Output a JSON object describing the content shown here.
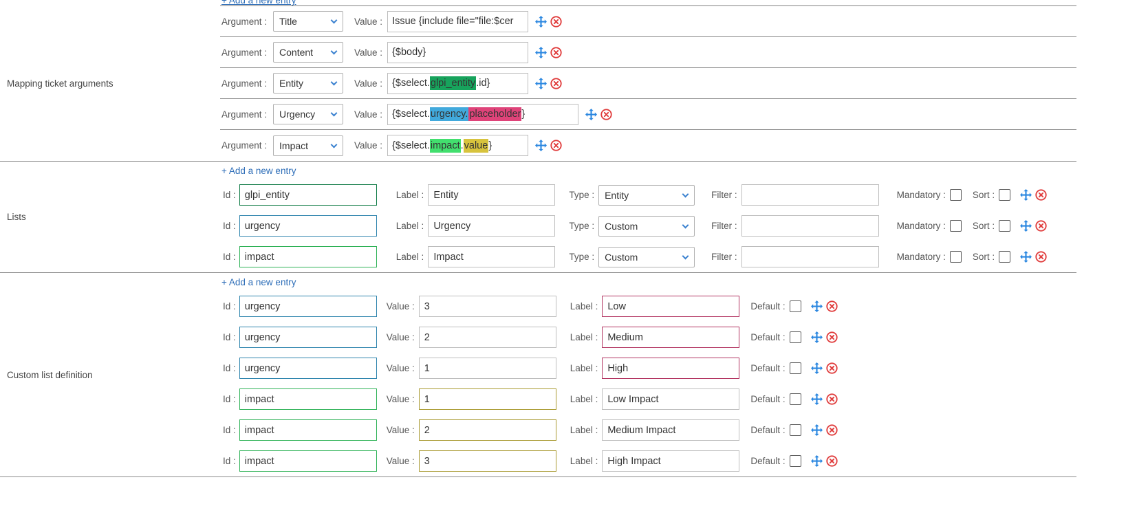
{
  "colors": {
    "green": "#17a35c",
    "blue": "#41a9dc",
    "lightgreen": "#42df6e",
    "pink": "#df4379",
    "yellow": "#d7c33d",
    "link": "#2e6eb8",
    "move_icon": "#2b87e0",
    "delete_icon": "#e03c3c",
    "select_chevron": "#3b82d0"
  },
  "top": {
    "add_entry": "+ Add a new entry"
  },
  "sections": {
    "mapping": {
      "label": "Mapping ticket arguments",
      "argument_label": "Argument :",
      "value_label": "Value :",
      "rows": [
        {
          "argument": "Title",
          "parts": [
            {
              "t": "Issue {include file=\"file:$cer"
            }
          ]
        },
        {
          "argument": "Content",
          "parts": [
            {
              "t": "{$body}"
            }
          ]
        },
        {
          "argument": "Entity",
          "parts": [
            {
              "t": "{$select."
            },
            {
              "t": "glpi_entity",
              "c": "green"
            },
            {
              "t": ".id}"
            }
          ]
        },
        {
          "argument": "Urgency",
          "wide": true,
          "parts": [
            {
              "t": "{$select."
            },
            {
              "t": "urgency.",
              "c": "blue"
            },
            {
              "t": "placeholder",
              "c": "pink"
            },
            {
              "t": "}"
            }
          ]
        },
        {
          "argument": "Impact",
          "parts": [
            {
              "t": "{$select."
            },
            {
              "t": "impact",
              "c": "lightgreen"
            },
            {
              "t": "."
            },
            {
              "t": "value",
              "c": "yellow"
            },
            {
              "t": "}"
            }
          ]
        }
      ]
    },
    "lists": {
      "label": "Lists",
      "add_entry": "+ Add a new entry",
      "labels": {
        "id": "Id :",
        "label": "Label :",
        "type": "Type :",
        "filter": "Filter :",
        "mandatory": "Mandatory :",
        "sort": "Sort :"
      },
      "rows": [
        {
          "id": "glpi_entity",
          "id_color": "green",
          "label": "Entity",
          "type": "Entity",
          "filter": ""
        },
        {
          "id": "urgency",
          "id_color": "blue",
          "label": "Urgency",
          "type": "Custom",
          "filter": ""
        },
        {
          "id": "impact",
          "id_color": "lightgreen",
          "label": "Impact",
          "type": "Custom",
          "filter": ""
        }
      ]
    },
    "custom": {
      "label": "Custom list definition",
      "add_entry": "+ Add a new entry",
      "labels": {
        "id": "Id :",
        "value": "Value :",
        "label": "Label :",
        "default": "Default :"
      },
      "rows": [
        {
          "id": "urgency",
          "id_color": "blue",
          "value": "3",
          "label": "Low",
          "label_color": "pink"
        },
        {
          "id": "urgency",
          "id_color": "blue",
          "value": "2",
          "label": "Medium",
          "label_color": "pink"
        },
        {
          "id": "urgency",
          "id_color": "blue",
          "value": "1",
          "label": "High",
          "label_color": "pink"
        },
        {
          "id": "impact",
          "id_color": "lightgreen",
          "value": "1",
          "value_color": "yellow",
          "label": "Low Impact"
        },
        {
          "id": "impact",
          "id_color": "lightgreen",
          "value": "2",
          "value_color": "yellow",
          "label": "Medium Impact"
        },
        {
          "id": "impact",
          "id_color": "lightgreen",
          "value": "3",
          "value_color": "yellow",
          "label": "High Impact"
        }
      ]
    }
  }
}
